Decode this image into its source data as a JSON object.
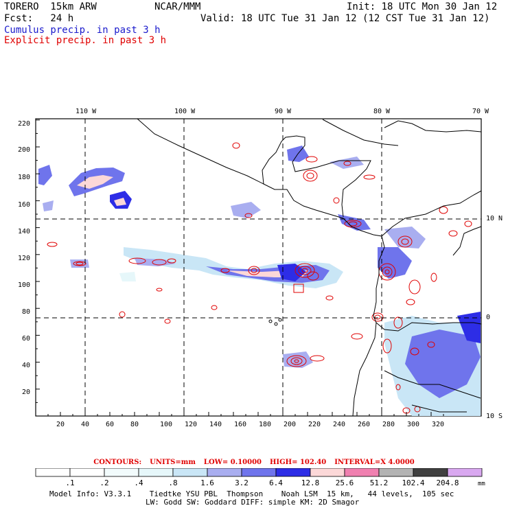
{
  "header": {
    "model": "TORERO  15km ARW",
    "org": "NCAR/MMM",
    "init": "Init: 18 UTC Mon 30 Jan 12",
    "fcst": "Fcst:   24 h",
    "valid": "Valid: 18 UTC Tue 31 Jan 12 (12 CST Tue 31 Jan 12)",
    "field1": "Cumulus precip. in past 3 h",
    "field2": "Explicit precip. in past 3 h"
  },
  "map": {
    "top_lon_labels": [
      "110 W",
      "100 W",
      "90 W",
      "80 W",
      "70 W"
    ],
    "right_lat_labels": [
      "10 N",
      "0",
      "10 S"
    ],
    "x_ticks": [
      "20",
      "40",
      "60",
      "80",
      "100",
      "120",
      "140",
      "160",
      "180",
      "200",
      "220",
      "240",
      "260",
      "280",
      "300",
      "320"
    ],
    "y_ticks": [
      "220",
      "200",
      "180",
      "160",
      "140",
      "120",
      "100",
      "80",
      "60",
      "40",
      "20"
    ]
  },
  "contours": {
    "label": "CONTOURS:",
    "units": "UNITS=mm",
    "low": "LOW= 0.10000",
    "high": "HIGH=  102.40",
    "interval": "INTERVAL=X  4.0000"
  },
  "colorbar": {
    "labels": [
      ".1",
      ".2",
      ".4",
      ".8",
      "1.6",
      "3.2",
      "6.4",
      "12.8",
      "25.6",
      "51.2",
      "102.4",
      "204.8"
    ],
    "unit": "mm",
    "colors": [
      "#ffffff",
      "#f2fbfc",
      "#e6f7fa",
      "#c9e6f6",
      "#a9aef0",
      "#6f74ec",
      "#2d2de6",
      "#fcd8d8",
      "#f080b0",
      "#b3b3b3",
      "#404040",
      "#d9a8f0"
    ]
  },
  "footer": {
    "line1": "Model Info: V3.3.1    Tiedtke YSU PBL  Thompson    Noah LSM  15 km,   44 levels,  105 sec",
    "line2": "LW: Godd SW: Goddard DIFF: simple KM: 2D Smagor"
  }
}
